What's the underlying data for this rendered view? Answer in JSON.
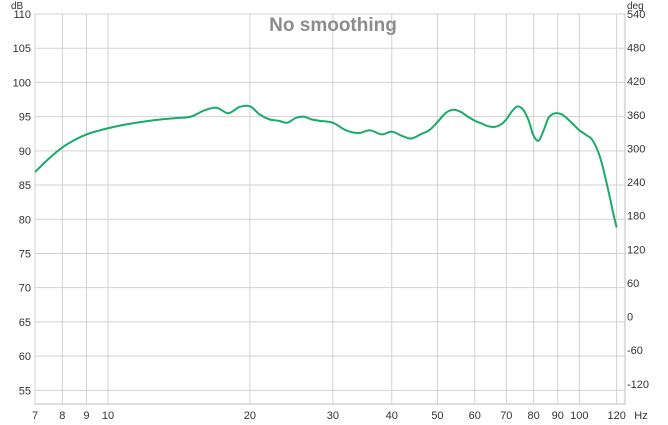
{
  "chart_data": {
    "type": "line",
    "title": "No smoothing",
    "x_unit": "Hz",
    "y_left_unit": "dB",
    "y_right_unit": "deg",
    "x_scale": "log",
    "xlim": [
      7,
      125
    ],
    "ylim": [
      53,
      110
    ],
    "y_right_lim": [
      -156,
      540
    ],
    "grid": true,
    "x_ticks": [
      7,
      8,
      9,
      10,
      20,
      30,
      40,
      50,
      60,
      70,
      80,
      90,
      100,
      120
    ],
    "x_tick_labels": [
      "7",
      "8",
      "9",
      "10",
      "20",
      "30",
      "40",
      "50",
      "60",
      "70",
      "80",
      "90",
      "100",
      "120"
    ],
    "y_ticks": [
      55,
      60,
      65,
      70,
      75,
      80,
      85,
      90,
      95,
      100,
      105,
      110
    ],
    "y_tick_labels": [
      "55",
      "60",
      "65",
      "70",
      "75",
      "80",
      "85",
      "90",
      "95",
      "100",
      "105",
      "110"
    ],
    "y_right_ticks": [
      -120,
      -60,
      0,
      60,
      120,
      180,
      240,
      300,
      360,
      420,
      480,
      540
    ],
    "y_right_tick_labels": [
      "-120",
      "-60",
      "0",
      "60",
      "120",
      "180",
      "240",
      "300",
      "360",
      "420",
      "480",
      "540"
    ],
    "series": [
      {
        "color": "#1aab6a",
        "x": [
          7,
          7.5,
          8,
          8.5,
          9,
          9.5,
          10,
          11,
          12,
          13,
          14,
          15,
          16,
          17,
          18,
          19,
          20,
          21,
          22,
          23,
          24,
          25,
          26,
          27,
          28,
          30,
          32,
          34,
          36,
          38,
          40,
          42,
          44,
          46,
          48,
          50,
          52,
          54,
          56,
          58,
          60,
          62,
          64,
          66,
          68,
          70,
          72,
          74,
          76,
          78,
          80,
          82,
          84,
          86,
          88,
          90,
          92,
          94,
          96,
          98,
          100,
          102,
          104,
          106,
          108,
          110,
          112,
          114,
          116,
          118,
          120
        ],
        "y": [
          86.9,
          88.9,
          90.5,
          91.6,
          92.4,
          92.9,
          93.3,
          93.9,
          94.3,
          94.6,
          94.8,
          95.0,
          95.9,
          96.3,
          95.5,
          96.4,
          96.5,
          95.3,
          94.6,
          94.4,
          94.1,
          94.8,
          95.0,
          94.6,
          94.4,
          94.1,
          93.0,
          92.6,
          93.0,
          92.4,
          92.8,
          92.2,
          91.8,
          92.4,
          93.0,
          94.2,
          95.5,
          96.0,
          95.7,
          95.0,
          94.4,
          94.0,
          93.6,
          93.5,
          93.8,
          94.6,
          95.8,
          96.5,
          96.0,
          94.5,
          92.2,
          91.5,
          93.0,
          94.8,
          95.4,
          95.5,
          95.3,
          94.8,
          94.2,
          93.6,
          93.0,
          92.6,
          92.2,
          91.8,
          90.9,
          89.6,
          87.8,
          85.6,
          83.3,
          80.9,
          78.8
        ]
      }
    ]
  }
}
